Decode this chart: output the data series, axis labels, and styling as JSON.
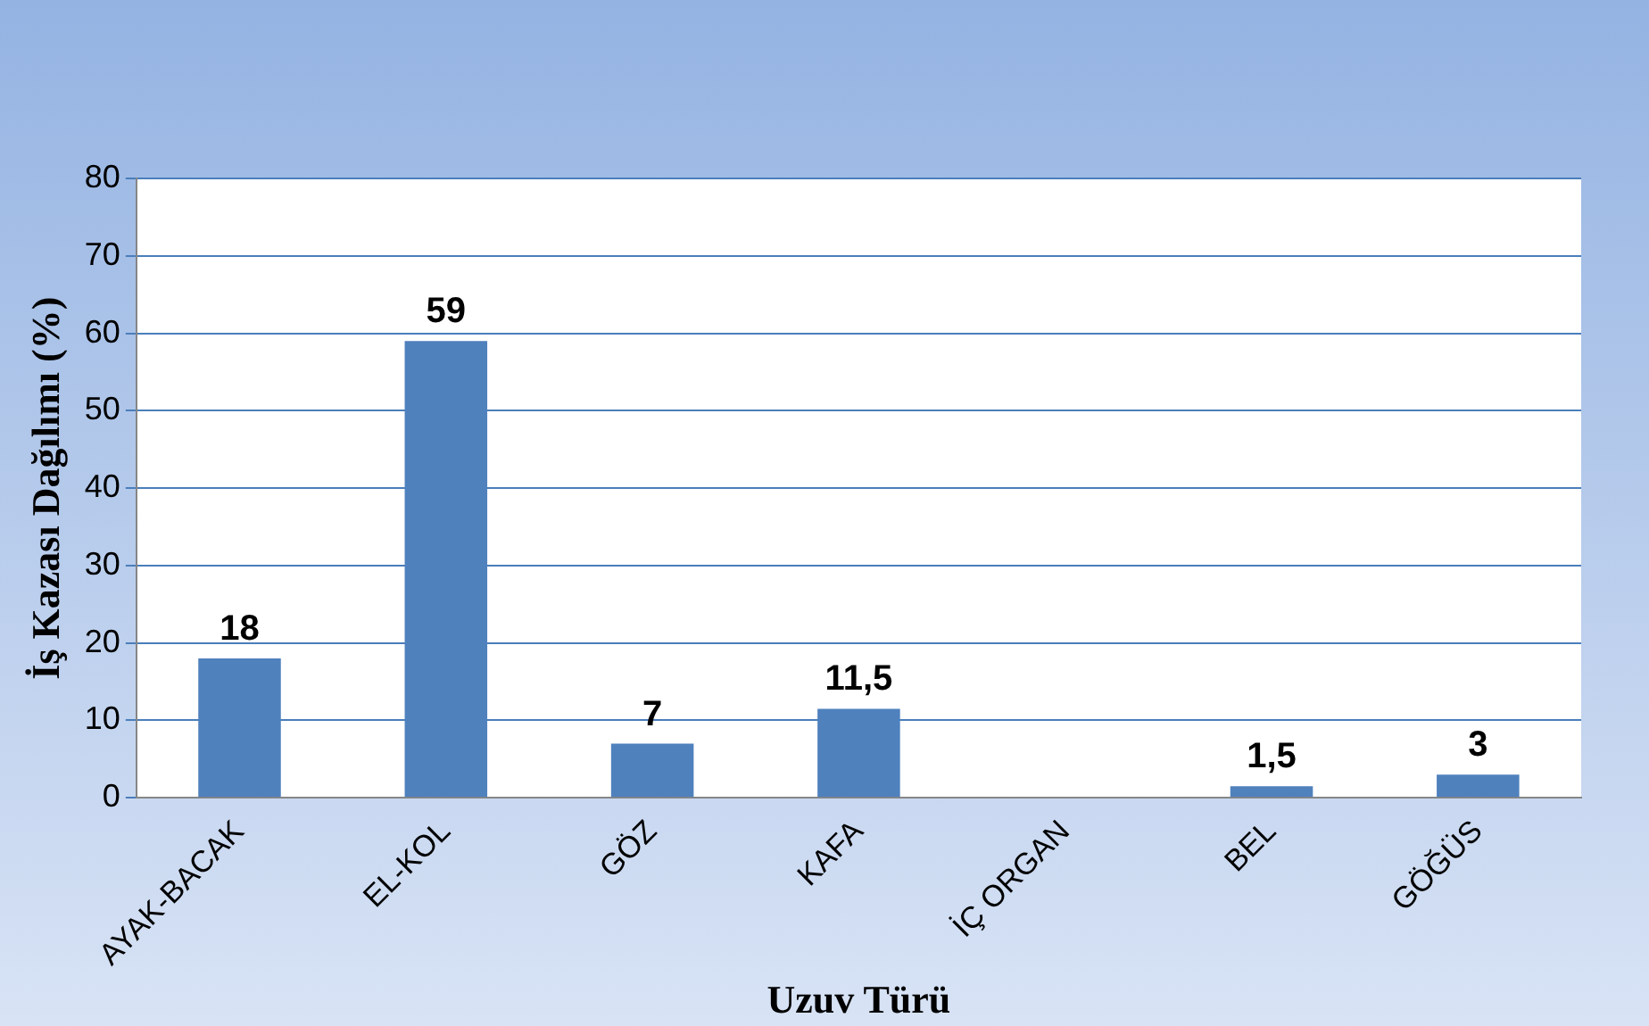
{
  "chart_data": {
    "type": "bar",
    "xlabel": "Uzuv Türü",
    "ylabel": "İş Kazası Dağılımı (%)",
    "categories": [
      "AYAK-BACAK",
      "EL-KOL",
      "GÖZ",
      "KAFA",
      "İÇ ORGAN",
      "BEL",
      "GÖĞÜS"
    ],
    "values": [
      18,
      59,
      7,
      11.5,
      0,
      1.5,
      3
    ],
    "value_labels": [
      "18",
      "59",
      "7",
      "11,5",
      null,
      "1,5",
      "3"
    ],
    "color": "#4f81bd",
    "ylim": [
      0,
      80
    ],
    "yticks": [
      0,
      10,
      20,
      30,
      40,
      50,
      60,
      70,
      80
    ],
    "grid": "y",
    "legend": false
  }
}
